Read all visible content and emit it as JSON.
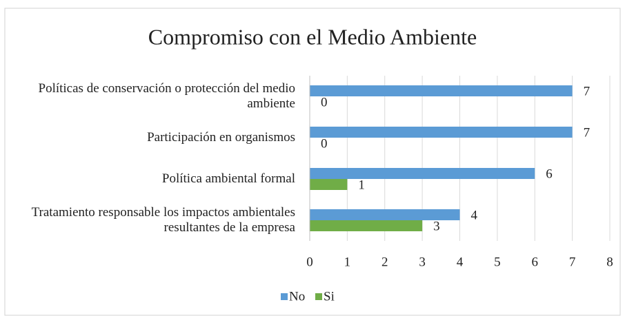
{
  "chart_data": {
    "type": "bar",
    "orientation": "horizontal",
    "title": "Compromiso con el Medio Ambiente",
    "categories": [
      "Políticas de conservación o protección del medio ambiente",
      "Participación en organismos",
      "Política ambiental formal",
      "Tratamiento responsable los impactos ambientales resultantes de la empresa"
    ],
    "series": [
      {
        "name": "No",
        "color": "#5b9bd5",
        "values": [
          7,
          7,
          6,
          4
        ]
      },
      {
        "name": "Si",
        "color": "#70ad47",
        "values": [
          0,
          0,
          1,
          3
        ]
      }
    ],
    "xlim": [
      0,
      8
    ],
    "xticks": [
      0,
      1,
      2,
      3,
      4,
      5,
      6,
      7,
      8
    ],
    "grid": true,
    "legend": "bottom"
  }
}
